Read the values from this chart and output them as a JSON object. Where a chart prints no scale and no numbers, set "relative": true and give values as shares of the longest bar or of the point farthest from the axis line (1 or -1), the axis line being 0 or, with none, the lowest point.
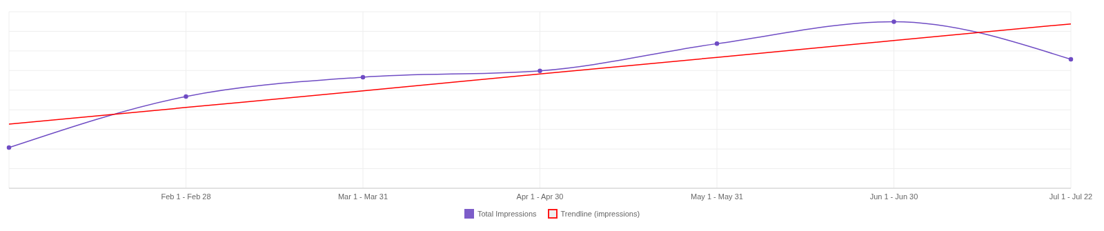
{
  "chart_data": {
    "type": "line",
    "relative": true,
    "categories": [
      null,
      "Feb 1 - Feb 28",
      "Mar 1 - Mar 31",
      "Apr 1 - Apr 30",
      "May 1 - May 31",
      "Jun 1 - Jun 30",
      "Jul 1 - Jul 22"
    ],
    "series": [
      {
        "name": "Total Impressions",
        "color": "#6f4cc4",
        "marker": "circle",
        "values": [
          0.244,
          0.551,
          0.667,
          0.705,
          0.868,
          1,
          0.774
        ]
      },
      {
        "name": "Trendline (impressions)",
        "color": "#ff0000",
        "marker": "none",
        "values": [
          0.385,
          0.485,
          0.585,
          0.686,
          0.786,
          0.887,
          0.987
        ]
      }
    ],
    "grid": true,
    "legend": "bottom",
    "line_style": "solid"
  }
}
